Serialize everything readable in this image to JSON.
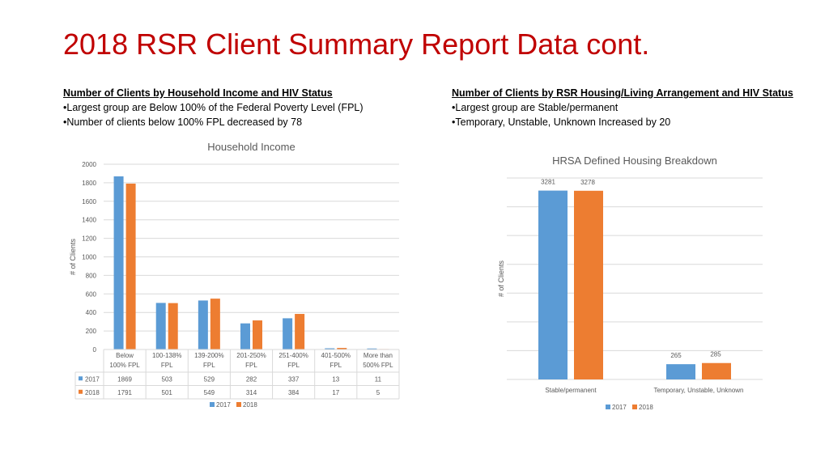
{
  "slide": {
    "title": "2018 RSR Client Summary Report Data cont."
  },
  "left_notes": {
    "heading": "Number of Clients by Household Income and HIV Status",
    "bullets": [
      "•Largest group are Below 100% of the Federal Poverty Level (FPL)",
      "•Number of clients below 100% FPL decreased by 78"
    ]
  },
  "right_notes": {
    "heading": "Number of Clients by RSR Housing/Living Arrangement and HIV Status",
    "bullets": [
      "•Largest group are Stable/permanent",
      "•Temporary, Unstable, Unknown Increased by 20"
    ]
  },
  "colors": {
    "s2017": "#5b9bd5",
    "s2018": "#ed7d31",
    "grid": "#d9d9d9",
    "text": "#595959"
  },
  "chart_data": [
    {
      "type": "bar",
      "title": "Household Income",
      "ylabel": "# of Clients",
      "xlabel": "",
      "ylim": [
        0,
        2000
      ],
      "yticks": [
        "0",
        "200",
        "400",
        "600",
        "800",
        "1000",
        "1200",
        "1400",
        "1600",
        "1800",
        "2000"
      ],
      "categories": [
        [
          "Below",
          "100% FPL"
        ],
        [
          "100-138%",
          "FPL"
        ],
        [
          "139-200%",
          "FPL"
        ],
        [
          "201-250%",
          "FPL"
        ],
        [
          "251-400%",
          "FPL"
        ],
        [
          "401-500%",
          "FPL"
        ],
        [
          "More than",
          "500% FPL"
        ]
      ],
      "series": [
        {
          "name": "2017",
          "values": [
            1869,
            503,
            529,
            282,
            337,
            13,
            11
          ]
        },
        {
          "name": "2018",
          "values": [
            1791,
            501,
            549,
            314,
            384,
            17,
            5
          ]
        }
      ],
      "data_table": true,
      "grid": true,
      "legend": "bottom"
    },
    {
      "type": "bar",
      "title": "HRSA Defined Housing Breakdown",
      "ylabel": "# of Clients",
      "xlabel": "",
      "ylim": [
        0,
        3500
      ],
      "categories": [
        "Stable/permanent",
        "Temporary, Unstable, Unknown"
      ],
      "series": [
        {
          "name": "2017",
          "values": [
            3281,
            265
          ]
        },
        {
          "name": "2018",
          "values": [
            3278,
            285
          ]
        }
      ],
      "data_labels": true,
      "grid": true,
      "legend": "bottom"
    }
  ]
}
